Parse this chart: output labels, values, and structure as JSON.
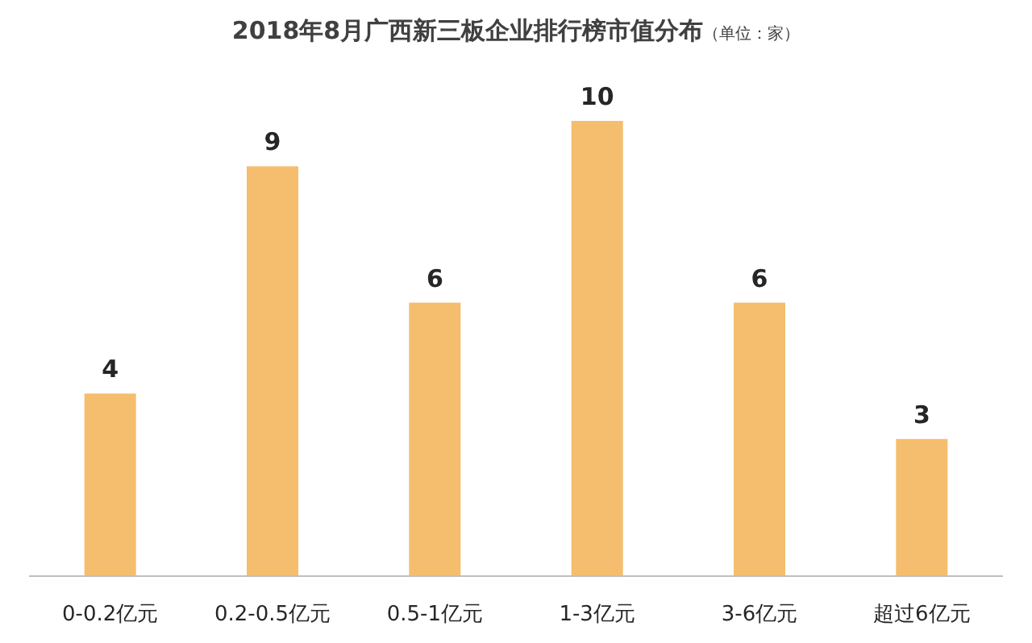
{
  "chart_data": {
    "type": "bar",
    "title": "2018年8月广西新三板企业排行榜市值分布",
    "subtitle": "（单位：家）",
    "categories": [
      "0-0.2亿元",
      "0.2-0.5亿元",
      "0.5-1亿元",
      "1-3亿元",
      "3-6亿元",
      "超过6亿元"
    ],
    "values": [
      4,
      9,
      6,
      10,
      6,
      3
    ],
    "color": "#f5be6e",
    "data_labels": true
  }
}
